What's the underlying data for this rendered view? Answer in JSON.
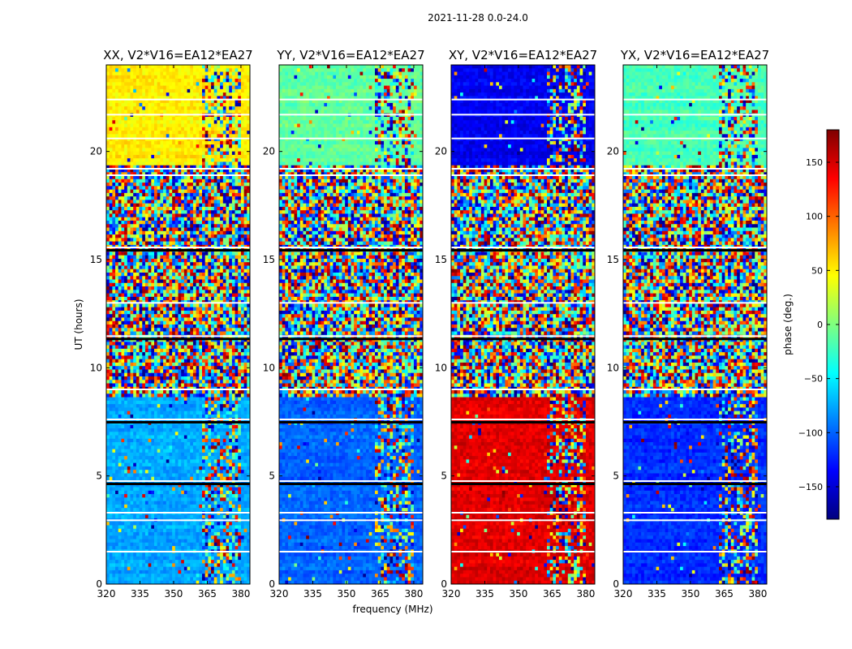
{
  "figure_title": "2021-11-28 0.0-24.0",
  "xlabel": "frequency (MHz)",
  "ylabel": "UT (hours)",
  "colorbar_label": "phase (deg.)",
  "colorbar_ticks": [
    150,
    100,
    50,
    0,
    -50,
    -100,
    -150
  ],
  "x_ticks": [
    320,
    335,
    350,
    365,
    380
  ],
  "y_ticks": [
    0,
    5,
    10,
    15,
    20
  ],
  "colormap": [
    "#00007f",
    "#0000ff",
    "#007fff",
    "#00ffff",
    "#7fff7f",
    "#ffff00",
    "#ff7f00",
    "#ff0000",
    "#7f0000"
  ],
  "chart_data": {
    "type": "heatmap",
    "title": "2021-11-28 0.0-24.0",
    "xlabel": "frequency (MHz)",
    "ylabel": "UT (hours)",
    "xlim": [
      320,
      384
    ],
    "ylim": [
      0,
      24
    ],
    "clim": [
      -180,
      180
    ],
    "colorbar_label": "phase (deg.)",
    "panels": [
      {
        "title": "XX, V2*V16=EA12*EA27",
        "phase_day": -75,
        "phase_early": 50,
        "phase_late": -80
      },
      {
        "title": "YY, V2*V16=EA12*EA27",
        "phase_day": -100,
        "phase_early": -10,
        "phase_late": -25
      },
      {
        "title": "XY, V2*V16=EA12*EA27",
        "phase_day": 145,
        "phase_early": -140,
        "phase_late": 140
      },
      {
        "title": "YX, V2*V16=EA12*EA27",
        "phase_day": -120,
        "phase_early": -20,
        "phase_late": -40
      }
    ],
    "noise_intervals_ut": [
      [
        4.6,
        7.5
      ],
      [
        7.5,
        11.3
      ],
      [
        11.3,
        15.4
      ]
    ],
    "rfi_band_mhz": [
      363,
      380
    ]
  }
}
